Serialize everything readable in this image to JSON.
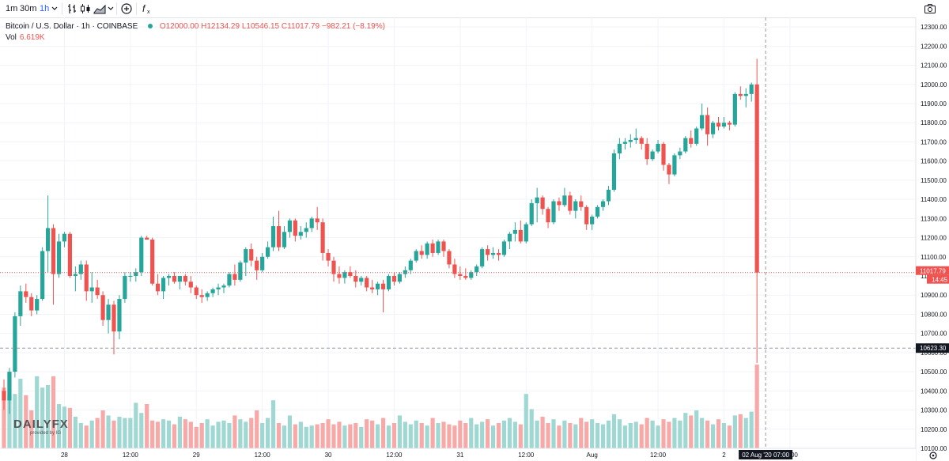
{
  "toolbar": {
    "intervals": [
      "1m",
      "30m",
      "1h"
    ],
    "active_interval": "1h"
  },
  "legend": {
    "symbol": "Bitcoin / U.S. Dollar · 1h · COINBASE",
    "open": "O12000.00",
    "high": "H12134.29",
    "low": "L10546.15",
    "close": "C11017.79",
    "change": "−982.21 (−8.19%)",
    "volume_label": "Vol",
    "volume_value": "6.619K"
  },
  "colors": {
    "up": "#26a69a",
    "down": "#ef5350",
    "up_volume": "#9fd8d2",
    "down_volume": "#f7a9a7",
    "grid": "#f0f3fa",
    "axis_text": "#131722",
    "crosshair": "#9598a1"
  },
  "price_axis": {
    "ticks": [
      "12300.00",
      "12200.00",
      "12100.00",
      "12000.00",
      "11900.00",
      "11800.00",
      "11700.00",
      "11600.00",
      "11500.00",
      "11400.00",
      "11300.00",
      "11200.00",
      "11100.00",
      "11000.00",
      "10900.00",
      "10800.00",
      "10700.00",
      "10600.00",
      "10500.00",
      "10400.00",
      "10300.00",
      "10200.00",
      "10100.00"
    ],
    "last_price_label": "11017.79",
    "countdown_label": "14:45",
    "crosshair_price_label": "10623.30"
  },
  "time_axis": {
    "ticks": [
      "28",
      "12:00",
      "29",
      "12:00",
      "30",
      "12:00",
      "31",
      "12:00",
      "Aug",
      "12:00",
      "2",
      "12:00"
    ],
    "crosshair_time_label": "02 Aug '20   07:00"
  },
  "logo": {
    "brand": "DAILYFX",
    "sub": "provided by IG"
  },
  "chart_data": {
    "type": "candlestick",
    "title": "Bitcoin / U.S. Dollar · 1h · COINBASE",
    "xlabel": "",
    "ylabel": "",
    "ylim": [
      10100,
      12350
    ],
    "grid": true,
    "start": "2020-07-27 13:00",
    "interval": "1h",
    "candles": [
      [
        10400,
        10460,
        10300,
        10350,
        4.8
      ],
      [
        10350,
        10520,
        10280,
        10500,
        4.2
      ],
      [
        10500,
        10810,
        10470,
        10790,
        4.3
      ],
      [
        10790,
        10950,
        10740,
        10920,
        5.5
      ],
      [
        10920,
        10960,
        10860,
        10890,
        4.2
      ],
      [
        10890,
        10910,
        10790,
        10820,
        3.0
      ],
      [
        10820,
        10900,
        10800,
        10880,
        5.7
      ],
      [
        10880,
        11150,
        10870,
        11130,
        4.8
      ],
      [
        11130,
        11420,
        11020,
        11250,
        5.0
      ],
      [
        11250,
        11270,
        10850,
        11010,
        5.7
      ],
      [
        11010,
        11220,
        10990,
        11180,
        3.5
      ],
      [
        11180,
        11230,
        11150,
        11220,
        3.3
      ],
      [
        11220,
        11230,
        10990,
        11000,
        3.2
      ],
      [
        11000,
        11050,
        10920,
        11010,
        2.5
      ],
      [
        11010,
        11080,
        10980,
        11060,
        2.0
      ],
      [
        11060,
        11080,
        10870,
        10920,
        1.8
      ],
      [
        10920,
        11020,
        10860,
        10940,
        2.2
      ],
      [
        10940,
        10980,
        10880,
        10900,
        2.4
      ],
      [
        10900,
        10920,
        10740,
        10770,
        3.0
      ],
      [
        10770,
        10880,
        10700,
        10850,
        2.6
      ],
      [
        10850,
        10870,
        10590,
        10710,
        2.2
      ],
      [
        10710,
        10900,
        10670,
        10880,
        2.5
      ],
      [
        10880,
        11020,
        10860,
        11000,
        2.4
      ],
      [
        11000,
        11020,
        10970,
        11000,
        2.4
      ],
      [
        11000,
        11040,
        10970,
        11020,
        3.6
      ],
      [
        11020,
        11210,
        11000,
        11200,
        2.8
      ],
      [
        11200,
        11210,
        11190,
        11190,
        3.5
      ],
      [
        11190,
        11200,
        10950,
        10960,
        2.2
      ],
      [
        10960,
        11010,
        10900,
        10920,
        2.1
      ],
      [
        10920,
        11000,
        10880,
        10990,
        2.3
      ],
      [
        10990,
        11010,
        10950,
        11000,
        2.2
      ],
      [
        11000,
        11020,
        10960,
        10970,
        1.9
      ],
      [
        10970,
        11000,
        10930,
        11000,
        2.5
      ],
      [
        11000,
        11010,
        10950,
        10970,
        2.3
      ],
      [
        10970,
        11000,
        10910,
        10940,
        2.1
      ],
      [
        10940,
        10950,
        10880,
        10900,
        1.7
      ],
      [
        10900,
        10930,
        10860,
        10890,
        2.0
      ],
      [
        10890,
        10920,
        10870,
        10910,
        2.3
      ],
      [
        10910,
        10940,
        10890,
        10930,
        1.8
      ],
      [
        10930,
        10960,
        10900,
        10940,
        2.1
      ],
      [
        10940,
        10960,
        10910,
        10950,
        2.2
      ],
      [
        10950,
        11020,
        10940,
        11010,
        2.0
      ],
      [
        11010,
        11060,
        10950,
        10980,
        2.6
      ],
      [
        10980,
        11080,
        10970,
        11070,
        2.3
      ],
      [
        11070,
        11150,
        11000,
        11140,
        2.1
      ],
      [
        11140,
        11170,
        11050,
        11080,
        2.4
      ],
      [
        11080,
        11100,
        10980,
        11030,
        3.0
      ],
      [
        11030,
        11120,
        11020,
        11100,
        2.0
      ],
      [
        11100,
        11180,
        11090,
        11150,
        2.4
      ],
      [
        11150,
        11310,
        11130,
        11260,
        3.8
      ],
      [
        11260,
        11340,
        11130,
        11150,
        2.0
      ],
      [
        11150,
        11260,
        11140,
        11230,
        1.8
      ],
      [
        11230,
        11300,
        11200,
        11290,
        2.6
      ],
      [
        11290,
        11300,
        11180,
        11210,
        1.9
      ],
      [
        11210,
        11260,
        11190,
        11230,
        2.1
      ],
      [
        11230,
        11280,
        11200,
        11250,
        1.7
      ],
      [
        11250,
        11310,
        11230,
        11300,
        1.8
      ],
      [
        11300,
        11360,
        11240,
        11280,
        1.9
      ],
      [
        11280,
        11300,
        11080,
        11120,
        2.0
      ],
      [
        11120,
        11140,
        11050,
        11080,
        2.3
      ],
      [
        11080,
        11100,
        10970,
        11010,
        1.9
      ],
      [
        11010,
        11050,
        10960,
        10990,
        2.1
      ],
      [
        10990,
        11030,
        10960,
        11020,
        1.8
      ],
      [
        11020,
        11050,
        10990,
        11000,
        1.9
      ],
      [
        11000,
        11030,
        10940,
        10970,
        2.0
      ],
      [
        10970,
        11000,
        10950,
        10990,
        1.7
      ],
      [
        10990,
        11000,
        10920,
        10940,
        2.3
      ],
      [
        10940,
        10980,
        10910,
        10930,
        2.2
      ],
      [
        10930,
        10970,
        10900,
        10960,
        1.9
      ],
      [
        10960,
        10980,
        10810,
        10930,
        2.4
      ],
      [
        10930,
        11010,
        10920,
        11000,
        1.8
      ],
      [
        11000,
        11020,
        10950,
        10970,
        2.0
      ],
      [
        10970,
        11020,
        10960,
        11010,
        2.6
      ],
      [
        11010,
        11050,
        10990,
        11030,
        2.1
      ],
      [
        11030,
        11090,
        11010,
        11080,
        1.9
      ],
      [
        11080,
        11140,
        11070,
        11130,
        2.2
      ],
      [
        11130,
        11160,
        11090,
        11110,
        2.0
      ],
      [
        11110,
        11180,
        11090,
        11170,
        1.8
      ],
      [
        11170,
        11190,
        11100,
        11120,
        2.4
      ],
      [
        11120,
        11190,
        11110,
        11180,
        2.0
      ],
      [
        11180,
        11190,
        11100,
        11130,
        2.1
      ],
      [
        11130,
        11140,
        11040,
        11060,
        1.9
      ],
      [
        11060,
        11090,
        10990,
        11010,
        1.8
      ],
      [
        11010,
        11050,
        10980,
        11000,
        2.2
      ],
      [
        11000,
        11040,
        10980,
        10990,
        2.0
      ],
      [
        10990,
        11030,
        10980,
        11020,
        2.4
      ],
      [
        11020,
        11060,
        11000,
        11050,
        1.9
      ],
      [
        11050,
        11150,
        11040,
        11140,
        2.1
      ],
      [
        11140,
        11160,
        11080,
        11110,
        2.3
      ],
      [
        11110,
        11150,
        11090,
        11120,
        1.8
      ],
      [
        11120,
        11140,
        11080,
        11110,
        2.0
      ],
      [
        11110,
        11190,
        11100,
        11180,
        2.2
      ],
      [
        11180,
        11230,
        11140,
        11220,
        2.4
      ],
      [
        11220,
        11280,
        11180,
        11240,
        2.1
      ],
      [
        11240,
        11290,
        11170,
        11180,
        1.9
      ],
      [
        11180,
        11280,
        11170,
        11270,
        4.3
      ],
      [
        11270,
        11400,
        11260,
        11380,
        3.1
      ],
      [
        11380,
        11460,
        11280,
        11410,
        2.2
      ],
      [
        11410,
        11420,
        11320,
        11350,
        2.5
      ],
      [
        11350,
        11360,
        11250,
        11280,
        2.0
      ],
      [
        11280,
        11400,
        11270,
        11390,
        2.3
      ],
      [
        11390,
        11410,
        11340,
        11370,
        1.8
      ],
      [
        11370,
        11460,
        11360,
        11420,
        2.2
      ],
      [
        11420,
        11440,
        11320,
        11340,
        2.0
      ],
      [
        11340,
        11400,
        11300,
        11390,
        1.9
      ],
      [
        11390,
        11420,
        11340,
        11360,
        2.4
      ],
      [
        11360,
        11370,
        11240,
        11270,
        2.1
      ],
      [
        11270,
        11320,
        11240,
        11310,
        2.3
      ],
      [
        11310,
        11370,
        11300,
        11360,
        2.0
      ],
      [
        11360,
        11400,
        11340,
        11390,
        1.9
      ],
      [
        11390,
        11470,
        11370,
        11450,
        2.2
      ],
      [
        11450,
        11660,
        11440,
        11640,
        2.7
      ],
      [
        11640,
        11720,
        11610,
        11690,
        2.3
      ],
      [
        11690,
        11720,
        11660,
        11700,
        1.8
      ],
      [
        11700,
        11740,
        11670,
        11710,
        2.0
      ],
      [
        11710,
        11770,
        11690,
        11720,
        2.1
      ],
      [
        11720,
        11730,
        11660,
        11690,
        1.9
      ],
      [
        11690,
        11720,
        11580,
        11610,
        2.4
      ],
      [
        11610,
        11660,
        11600,
        11650,
        2.2
      ],
      [
        11650,
        11710,
        11640,
        11690,
        1.8
      ],
      [
        11690,
        11700,
        11550,
        11580,
        2.3
      ],
      [
        11580,
        11590,
        11480,
        11530,
        2.1
      ],
      [
        11530,
        11640,
        11520,
        11630,
        2.4
      ],
      [
        11630,
        11670,
        11610,
        11650,
        2.2
      ],
      [
        11650,
        11730,
        11640,
        11720,
        2.8
      ],
      [
        11720,
        11760,
        11670,
        11690,
        2.6
      ],
      [
        11690,
        11780,
        11680,
        11770,
        3.0
      ],
      [
        11770,
        11900,
        11760,
        11840,
        2.4
      ],
      [
        11840,
        11880,
        11680,
        11740,
        2.2
      ],
      [
        11740,
        11810,
        11720,
        11800,
        1.9
      ],
      [
        11800,
        11830,
        11760,
        11780,
        2.3
      ],
      [
        11780,
        11830,
        11770,
        11800,
        2.0
      ],
      [
        11800,
        11810,
        11760,
        11790,
        1.8
      ],
      [
        11790,
        11960,
        11780,
        11950,
        2.6
      ],
      [
        11950,
        11990,
        11920,
        11940,
        2.7
      ],
      [
        11940,
        11980,
        11880,
        11950,
        2.4
      ],
      [
        11950,
        12010,
        11910,
        12000,
        2.9
      ],
      [
        12000,
        12134.29,
        10546.15,
        11017.79,
        6.619
      ]
    ]
  }
}
